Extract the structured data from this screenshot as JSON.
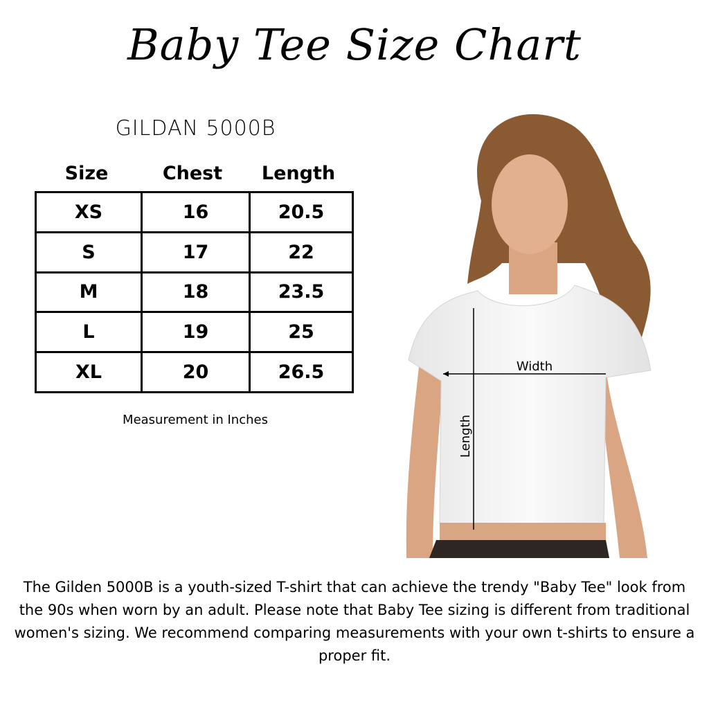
{
  "title": "Baby Tee Size Chart",
  "brand": "GILDAN 5000B",
  "table": {
    "headers": [
      "Size",
      "Chest",
      "Length"
    ],
    "rows": [
      [
        "XS",
        "16",
        "20.5"
      ],
      [
        "S",
        "17",
        "22"
      ],
      [
        "M",
        "18",
        "23.5"
      ],
      [
        "L",
        "19",
        "25"
      ],
      [
        "XL",
        "20",
        "26.5"
      ]
    ]
  },
  "note": "Measurement in Inches",
  "photo": {
    "width_label": "Width",
    "length_label": "Length"
  },
  "description": "The Gilden 5000B is a youth-sized T-shirt that can achieve the trendy \"Baby Tee\" look from the 90s when worn by an adult. Please note that Baby Tee sizing is different from traditional women's sizing. We recommend comparing measurements with your own t-shirts to ensure a proper fit."
}
